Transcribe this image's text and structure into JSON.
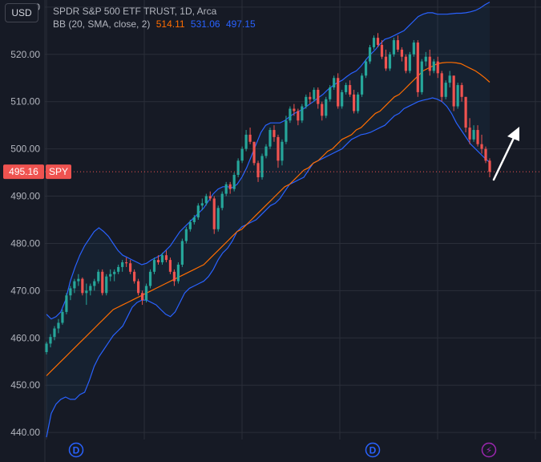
{
  "header": {
    "currency_button": "USD",
    "symbol_line": "SPDR S&P 500 ETF TRUST, 1D, Arca",
    "indicator_label": "BB (20, SMA, close, 2)",
    "bb_basis": "514.11",
    "bb_upper": "531.06",
    "bb_lower": "497.15"
  },
  "price_tag": {
    "value": "495.16",
    "symbol": "SPY"
  },
  "markers": [
    {
      "type": "dividend",
      "label": "D"
    },
    {
      "type": "dividend",
      "label": "D"
    },
    {
      "type": "event",
      "label": "⚡"
    }
  ],
  "colors": {
    "background": "#161a25",
    "grid": "#2a2e39",
    "axis_text": "#b2b5be",
    "up": "#26a69a",
    "down": "#ef5350",
    "bb_band": "#2962ff",
    "bb_basis": "#ff6d00",
    "bb_fill": "rgba(33,150,243,0.06)",
    "price_line": "#ef5350",
    "marker_dividend": "#2962ff",
    "marker_event": "#9c27b0",
    "annotation": "#ffffff"
  },
  "chart_data": {
    "type": "candlestick",
    "symbol": "SPY",
    "interval": "1D",
    "ylim": [
      438.5,
      531.5
    ],
    "y_ticks": [
      "440.00",
      "450.00",
      "460.00",
      "470.00",
      "480.00",
      "490.00",
      "500.00",
      "510.00",
      "520.00",
      "530.00"
    ],
    "last_price": 495.16,
    "candles": [
      [
        457.0,
        459.2,
        456.5,
        458.8
      ],
      [
        458.8,
        460.8,
        458.0,
        460.2
      ],
      [
        460.2,
        462.5,
        459.5,
        462.0
      ],
      [
        462.0,
        464.0,
        461.0,
        463.2
      ],
      [
        463.2,
        466.0,
        462.8,
        465.5
      ],
      [
        465.5,
        469.5,
        465.0,
        469.0
      ],
      [
        469.0,
        471.0,
        468.0,
        470.5
      ],
      [
        470.5,
        472.5,
        469.5,
        472.0
      ],
      [
        472.0,
        473.5,
        471.0,
        472.5
      ],
      [
        472.5,
        472.8,
        469.0,
        469.5
      ],
      [
        469.5,
        471.5,
        467.0,
        470.0
      ],
      [
        470.0,
        471.5,
        469.0,
        471.0
      ],
      [
        471.0,
        472.5,
        470.0,
        472.0
      ],
      [
        472.0,
        474.5,
        471.5,
        474.0
      ],
      [
        474.0,
        474.5,
        469.0,
        469.5
      ],
      [
        469.5,
        473.5,
        469.0,
        473.0
      ],
      [
        473.0,
        474.5,
        472.0,
        473.5
      ],
      [
        473.5,
        474.5,
        472.0,
        474.0
      ],
      [
        474.0,
        475.5,
        473.5,
        475.0
      ],
      [
        475.0,
        476.5,
        474.0,
        476.0
      ],
      [
        476.0,
        477.0,
        475.0,
        475.8
      ],
      [
        475.8,
        476.5,
        473.5,
        474.0
      ],
      [
        474.0,
        474.5,
        471.5,
        472.0
      ],
      [
        472.0,
        472.5,
        469.0,
        469.5
      ],
      [
        469.5,
        470.0,
        467.0,
        468.0
      ],
      [
        468.0,
        471.5,
        467.5,
        471.0
      ],
      [
        471.0,
        474.5,
        470.5,
        474.0
      ],
      [
        474.0,
        477.0,
        473.5,
        476.5
      ],
      [
        476.5,
        477.5,
        475.5,
        476.0
      ],
      [
        476.0,
        478.0,
        475.5,
        477.5
      ],
      [
        477.5,
        478.5,
        476.0,
        476.5
      ],
      [
        476.5,
        477.0,
        473.5,
        474.0
      ],
      [
        474.0,
        474.5,
        471.0,
        472.0
      ],
      [
        472.0,
        476.0,
        471.5,
        475.5
      ],
      [
        475.5,
        481.0,
        475.0,
        480.5
      ],
      [
        480.5,
        483.5,
        480.0,
        483.0
      ],
      [
        483.0,
        485.0,
        482.5,
        484.5
      ],
      [
        484.5,
        486.0,
        484.0,
        485.5
      ],
      [
        485.5,
        488.5,
        485.0,
        488.0
      ],
      [
        488.0,
        489.5,
        487.0,
        488.5
      ],
      [
        488.5,
        490.5,
        488.0,
        490.0
      ],
      [
        490.0,
        491.0,
        489.0,
        489.5
      ],
      [
        489.5,
        490.0,
        482.0,
        483.0
      ],
      [
        483.0,
        488.0,
        482.5,
        487.5
      ],
      [
        487.5,
        491.0,
        487.0,
        490.5
      ],
      [
        490.5,
        493.0,
        490.0,
        492.5
      ],
      [
        492.5,
        493.0,
        490.5,
        491.5
      ],
      [
        491.5,
        495.0,
        491.0,
        494.5
      ],
      [
        494.5,
        498.0,
        494.0,
        497.5
      ],
      [
        497.5,
        500.5,
        497.0,
        500.0
      ],
      [
        500.0,
        504.0,
        499.5,
        503.0
      ],
      [
        503.0,
        504.5,
        501.0,
        501.5
      ],
      [
        501.5,
        501.5,
        496.5,
        497.0
      ],
      [
        497.0,
        497.5,
        493.0,
        494.0
      ],
      [
        494.0,
        499.0,
        493.5,
        498.5
      ],
      [
        498.5,
        501.0,
        498.0,
        500.5
      ],
      [
        500.5,
        504.5,
        500.0,
        504.0
      ],
      [
        504.0,
        505.0,
        501.5,
        502.5
      ],
      [
        502.5,
        503.0,
        496.0,
        497.5
      ],
      [
        497.5,
        502.0,
        496.5,
        501.5
      ],
      [
        501.5,
        507.0,
        501.0,
        506.0
      ],
      [
        506.0,
        509.0,
        505.5,
        508.5
      ],
      [
        508.5,
        509.5,
        507.0,
        508.0
      ],
      [
        508.0,
        508.5,
        505.0,
        506.0
      ],
      [
        506.0,
        509.5,
        505.5,
        509.0
      ],
      [
        509.0,
        511.5,
        508.5,
        511.0
      ],
      [
        511.0,
        512.0,
        509.5,
        510.5
      ],
      [
        510.5,
        513.0,
        510.0,
        512.5
      ],
      [
        512.5,
        513.0,
        508.5,
        509.5
      ],
      [
        509.5,
        510.0,
        506.0,
        507.0
      ],
      [
        507.0,
        511.0,
        506.5,
        510.5
      ],
      [
        510.5,
        513.5,
        510.0,
        513.0
      ],
      [
        513.0,
        515.5,
        512.5,
        515.0
      ],
      [
        515.0,
        516.0,
        508.5,
        509.0
      ],
      [
        509.0,
        512.5,
        508.5,
        512.0
      ],
      [
        512.0,
        514.0,
        511.5,
        513.5
      ],
      [
        513.5,
        514.5,
        511.0,
        511.5
      ],
      [
        511.5,
        512.5,
        507.5,
        508.0
      ],
      [
        508.0,
        512.0,
        507.5,
        511.5
      ],
      [
        511.5,
        516.0,
        511.0,
        515.5
      ],
      [
        515.5,
        519.0,
        515.0,
        518.5
      ],
      [
        518.5,
        522.0,
        518.0,
        521.5
      ],
      [
        521.5,
        524.0,
        521.0,
        523.5
      ],
      [
        523.5,
        524.5,
        521.5,
        522.0
      ],
      [
        522.0,
        523.0,
        519.0,
        519.5
      ],
      [
        519.5,
        521.0,
        516.5,
        517.0
      ],
      [
        517.0,
        520.5,
        516.5,
        520.0
      ],
      [
        520.0,
        523.5,
        519.5,
        523.0
      ],
      [
        523.0,
        524.0,
        520.5,
        521.0
      ],
      [
        521.0,
        521.5,
        518.5,
        519.5
      ],
      [
        519.5,
        520.0,
        516.0,
        516.5
      ],
      [
        516.5,
        520.5,
        516.0,
        520.0
      ],
      [
        520.0,
        523.0,
        519.5,
        522.5
      ],
      [
        522.5,
        523.0,
        511.0,
        512.0
      ],
      [
        512.0,
        519.0,
        511.5,
        518.5
      ],
      [
        518.5,
        520.5,
        517.5,
        519.5
      ],
      [
        519.5,
        521.0,
        515.5,
        516.5
      ],
      [
        516.5,
        519.0,
        516.0,
        518.5
      ],
      [
        518.5,
        519.5,
        515.0,
        516.0
      ],
      [
        516.0,
        516.5,
        510.0,
        511.0
      ],
      [
        511.0,
        514.5,
        510.5,
        514.0
      ],
      [
        514.0,
        516.5,
        513.0,
        515.5
      ],
      [
        515.5,
        515.5,
        508.0,
        509.0
      ],
      [
        509.0,
        514.0,
        508.5,
        513.5
      ],
      [
        513.5,
        514.0,
        510.0,
        511.0
      ],
      [
        511.0,
        511.0,
        503.5,
        504.5
      ],
      [
        504.5,
        506.5,
        501.0,
        502.0
      ],
      [
        502.0,
        505.0,
        501.5,
        504.0
      ],
      [
        504.0,
        505.0,
        500.5,
        501.0
      ],
      [
        501.0,
        503.0,
        499.0,
        500.0
      ],
      [
        500.0,
        500.5,
        497.0,
        497.5
      ],
      [
        497.5,
        498.0,
        494.0,
        495.16
      ]
    ],
    "bb_upper": [
      465.0,
      464.0,
      464.5,
      465.5,
      468.0,
      472.0,
      475.0,
      477.5,
      479.5,
      481.0,
      482.5,
      483.3,
      482.5,
      481.5,
      480.0,
      478.5,
      477.5,
      477.0,
      476.5,
      476.0,
      475.5,
      475.8,
      476.5,
      477.0,
      477.5,
      478.5,
      479.5,
      481.0,
      482.5,
      483.5,
      484.5,
      485.5,
      486.5,
      487.5,
      489.0,
      490.5,
      491.5,
      492.0,
      492.0,
      491.8,
      492.5,
      494.0,
      496.0,
      498.5,
      501.0,
      503.5,
      505.0,
      505.5,
      505.5,
      505.5,
      506.0,
      506.8,
      507.5,
      508.0,
      508.5,
      509.3,
      510.0,
      510.8,
      511.5,
      512.5,
      513.3,
      514.0,
      514.5,
      515.3,
      516.0,
      516.5,
      517.5,
      518.8,
      520.0,
      521.0,
      522.2,
      523.2,
      523.5,
      524.0,
      524.5,
      525.0,
      526.0,
      527.0,
      528.0,
      528.5,
      528.8,
      528.8,
      528.5,
      528.5,
      528.5,
      528.6,
      528.7,
      528.7,
      528.8,
      529.0,
      529.3,
      529.8,
      530.5,
      531.06
    ],
    "bb_basis": [
      452.0,
      453.0,
      454.0,
      455.0,
      456.0,
      457.0,
      458.0,
      459.0,
      460.0,
      461.0,
      462.0,
      463.0,
      464.0,
      465.0,
      466.0,
      466.5,
      467.0,
      467.5,
      468.0,
      468.5,
      469.0,
      469.5,
      470.0,
      470.5,
      471.0,
      471.5,
      472.0,
      472.5,
      473.0,
      473.5,
      474.0,
      474.5,
      475.0,
      475.5,
      476.5,
      477.5,
      478.5,
      479.5,
      480.5,
      481.5,
      482.5,
      483.0,
      484.0,
      485.0,
      486.0,
      487.0,
      488.0,
      489.0,
      490.0,
      491.0,
      492.0,
      492.5,
      493.5,
      494.5,
      495.5,
      496.0,
      497.0,
      497.5,
      498.5,
      499.5,
      500.0,
      501.0,
      502.0,
      502.5,
      503.0,
      504.0,
      504.5,
      505.5,
      506.5,
      507.5,
      508.0,
      509.0,
      510.0,
      511.0,
      511.5,
      512.5,
      513.5,
      514.5,
      515.5,
      516.5,
      517.0,
      517.5,
      518.0,
      518.2,
      518.3,
      518.3,
      518.2,
      518.0,
      517.5,
      517.0,
      516.5,
      515.8,
      515.0,
      514.11
    ],
    "bb_lower": [
      439.0,
      444.0,
      446.0,
      447.0,
      447.5,
      447.0,
      447.0,
      448.0,
      448.5,
      451.0,
      454.0,
      456.0,
      457.5,
      459.0,
      460.5,
      461.5,
      462.5,
      464.5,
      466.5,
      467.5,
      468.0,
      468.0,
      467.5,
      467.0,
      466.0,
      465.0,
      464.5,
      465.5,
      467.5,
      469.5,
      470.5,
      471.0,
      471.5,
      472.0,
      473.0,
      474.5,
      476.5,
      478.0,
      479.0,
      480.5,
      482.5,
      483.5,
      484.0,
      484.5,
      485.0,
      486.0,
      487.0,
      488.0,
      488.5,
      489.5,
      491.0,
      492.5,
      493.0,
      493.5,
      494.0,
      495.5,
      497.0,
      497.5,
      498.0,
      498.5,
      499.0,
      499.5,
      500.0,
      501.0,
      502.0,
      502.5,
      503.0,
      503.2,
      503.5,
      504.0,
      504.5,
      505.0,
      506.0,
      507.0,
      507.5,
      508.5,
      509.0,
      509.5,
      510.0,
      510.3,
      510.5,
      510.8,
      510.5,
      510.0,
      509.0,
      507.5,
      505.5,
      504.0,
      502.5,
      501.0,
      500.0,
      499.0,
      498.0,
      497.15
    ]
  }
}
